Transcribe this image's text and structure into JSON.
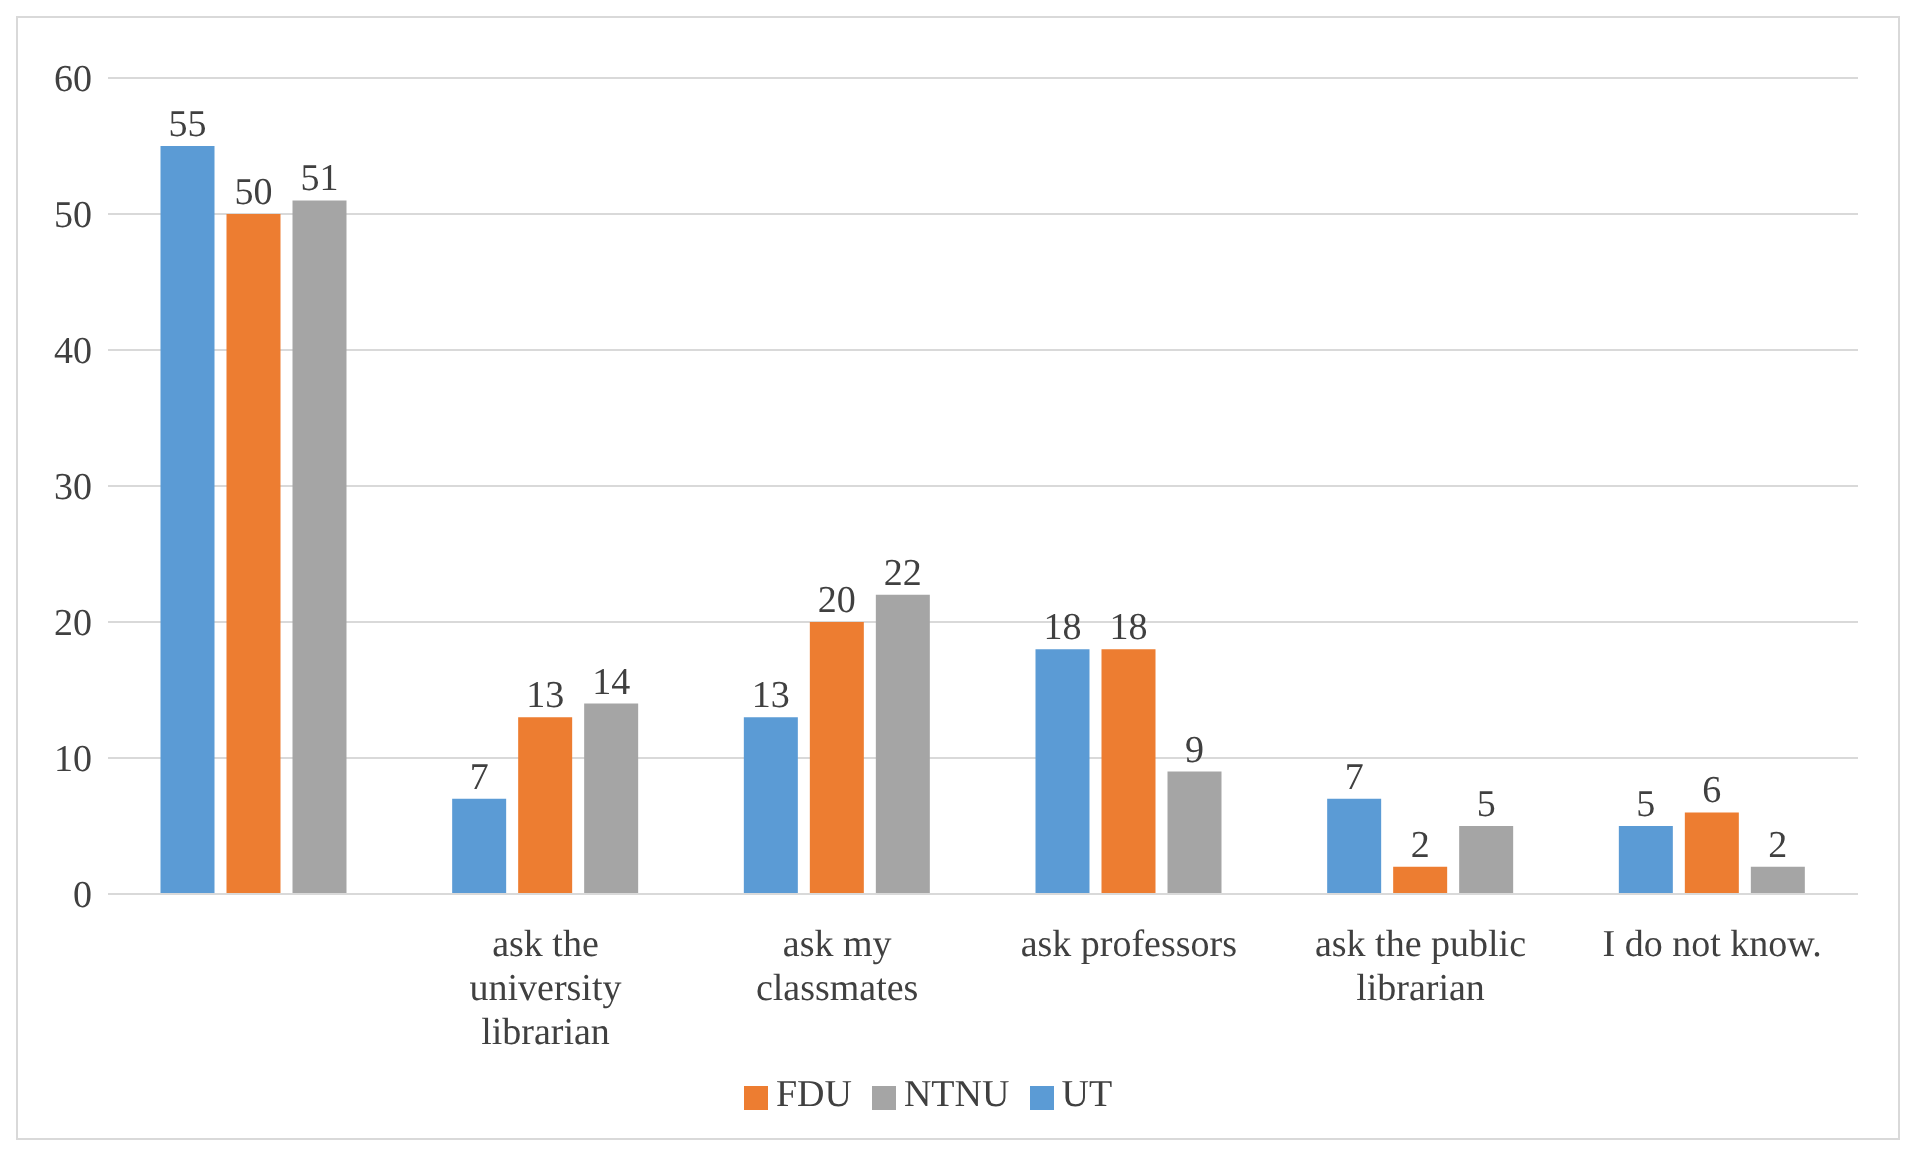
{
  "chart_data": {
    "type": "bar",
    "categories": [
      null,
      "ask the university librarian",
      "ask my classmates",
      "ask professors",
      "ask the public librarian",
      "I do not know."
    ],
    "series": [
      {
        "name": "UT",
        "color": "#5b9bd5",
        "values": [
          55,
          7,
          13,
          18,
          7,
          5
        ]
      },
      {
        "name": "FDU",
        "color": "#ed7d31",
        "values": [
          50,
          13,
          20,
          18,
          2,
          6
        ]
      },
      {
        "name": "NTNU",
        "color": "#a5a5a5",
        "values": [
          51,
          14,
          22,
          9,
          5,
          2
        ]
      }
    ],
    "ylim": [
      0,
      60
    ],
    "yticks": [
      0,
      10,
      20,
      30,
      40,
      50,
      60
    ],
    "grid": "y",
    "legend": "bottom",
    "data_labels": true
  }
}
